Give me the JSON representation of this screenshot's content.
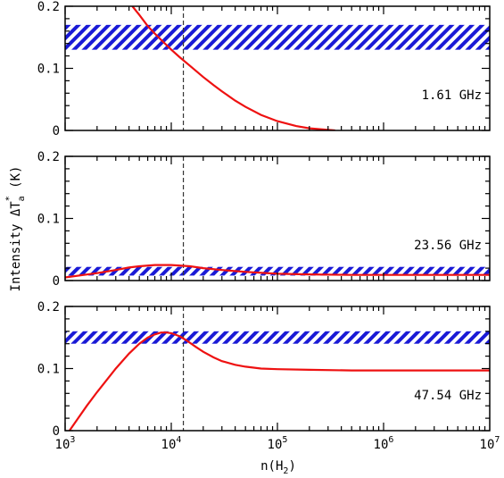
{
  "chart_data": {
    "type": "line",
    "shared_x": {
      "label_main": "n(H",
      "label_sub": "2",
      "label_end": ")",
      "scale": "log",
      "xlim": [
        1000,
        10000000
      ],
      "tick_base": "10",
      "tick_exponents": [
        "3",
        "4",
        "5",
        "6",
        "7"
      ]
    },
    "shared_y": {
      "label_main": "Intensity ΔT",
      "label_sub": "a",
      "label_sup": "*",
      "label_end": " (K)"
    },
    "reference_x": 13000,
    "line_color": "#ee1111",
    "band_color": "#1a1ad6",
    "panels": [
      {
        "label": "1.61 GHz",
        "ylim": [
          0,
          0.2
        ],
        "yticks": [
          {
            "v": 0,
            "label": "0"
          },
          {
            "v": 0.1,
            "label": "0.1"
          },
          {
            "v": 0.2,
            "label": "0.2"
          }
        ],
        "band": [
          0.13,
          0.17
        ],
        "series": {
          "x": [
            4300,
            5000,
            6000,
            7000,
            8000,
            10000,
            12000,
            15000,
            20000,
            25000,
            30000,
            40000,
            50000,
            70000,
            100000,
            150000,
            200000,
            300000,
            350000
          ],
          "y": [
            0.2,
            0.186,
            0.168,
            0.156,
            0.146,
            0.13,
            0.118,
            0.104,
            0.086,
            0.073,
            0.063,
            0.048,
            0.038,
            0.025,
            0.015,
            0.007,
            0.0035,
            0.0008,
            0
          ]
        }
      },
      {
        "label": "23.56 GHz",
        "ylim": [
          0,
          0.2
        ],
        "yticks": [
          {
            "v": 0,
            "label": "0"
          },
          {
            "v": 0.1,
            "label": "0.1"
          },
          {
            "v": 0.2,
            "label": "0.2"
          }
        ],
        "band": [
          0.008,
          0.022
        ],
        "series": {
          "x": [
            1000,
            1500,
            2000,
            3000,
            4000,
            5000,
            7000,
            10000,
            15000,
            20000,
            30000,
            50000,
            100000,
            200000,
            500000,
            1000000,
            10000000
          ],
          "y": [
            0.005,
            0.009,
            0.012,
            0.017,
            0.021,
            0.023,
            0.025,
            0.025,
            0.023,
            0.02,
            0.017,
            0.014,
            0.011,
            0.01,
            0.009,
            0.009,
            0.009
          ]
        }
      },
      {
        "label": "47.54 GHz",
        "ylim": [
          0,
          0.2
        ],
        "yticks": [
          {
            "v": 0,
            "label": "0"
          },
          {
            "v": 0.1,
            "label": "0.1"
          },
          {
            "v": 0.2,
            "label": "0.2"
          }
        ],
        "band": [
          0.14,
          0.16
        ],
        "series": {
          "x": [
            1100,
            1300,
            1600,
            2000,
            2500,
            3000,
            4000,
            5000,
            6000,
            7000,
            8000,
            9000,
            10000,
            12000,
            14000,
            17000,
            20000,
            25000,
            30000,
            40000,
            50000,
            70000,
            100000,
            200000,
            500000,
            1000000,
            3000000,
            10000000
          ],
          "y": [
            0,
            0.018,
            0.04,
            0.062,
            0.083,
            0.1,
            0.124,
            0.14,
            0.15,
            0.155,
            0.158,
            0.158,
            0.157,
            0.152,
            0.145,
            0.135,
            0.127,
            0.118,
            0.112,
            0.106,
            0.103,
            0.1,
            0.099,
            0.098,
            0.097,
            0.097,
            0.097,
            0.097
          ]
        }
      }
    ]
  }
}
